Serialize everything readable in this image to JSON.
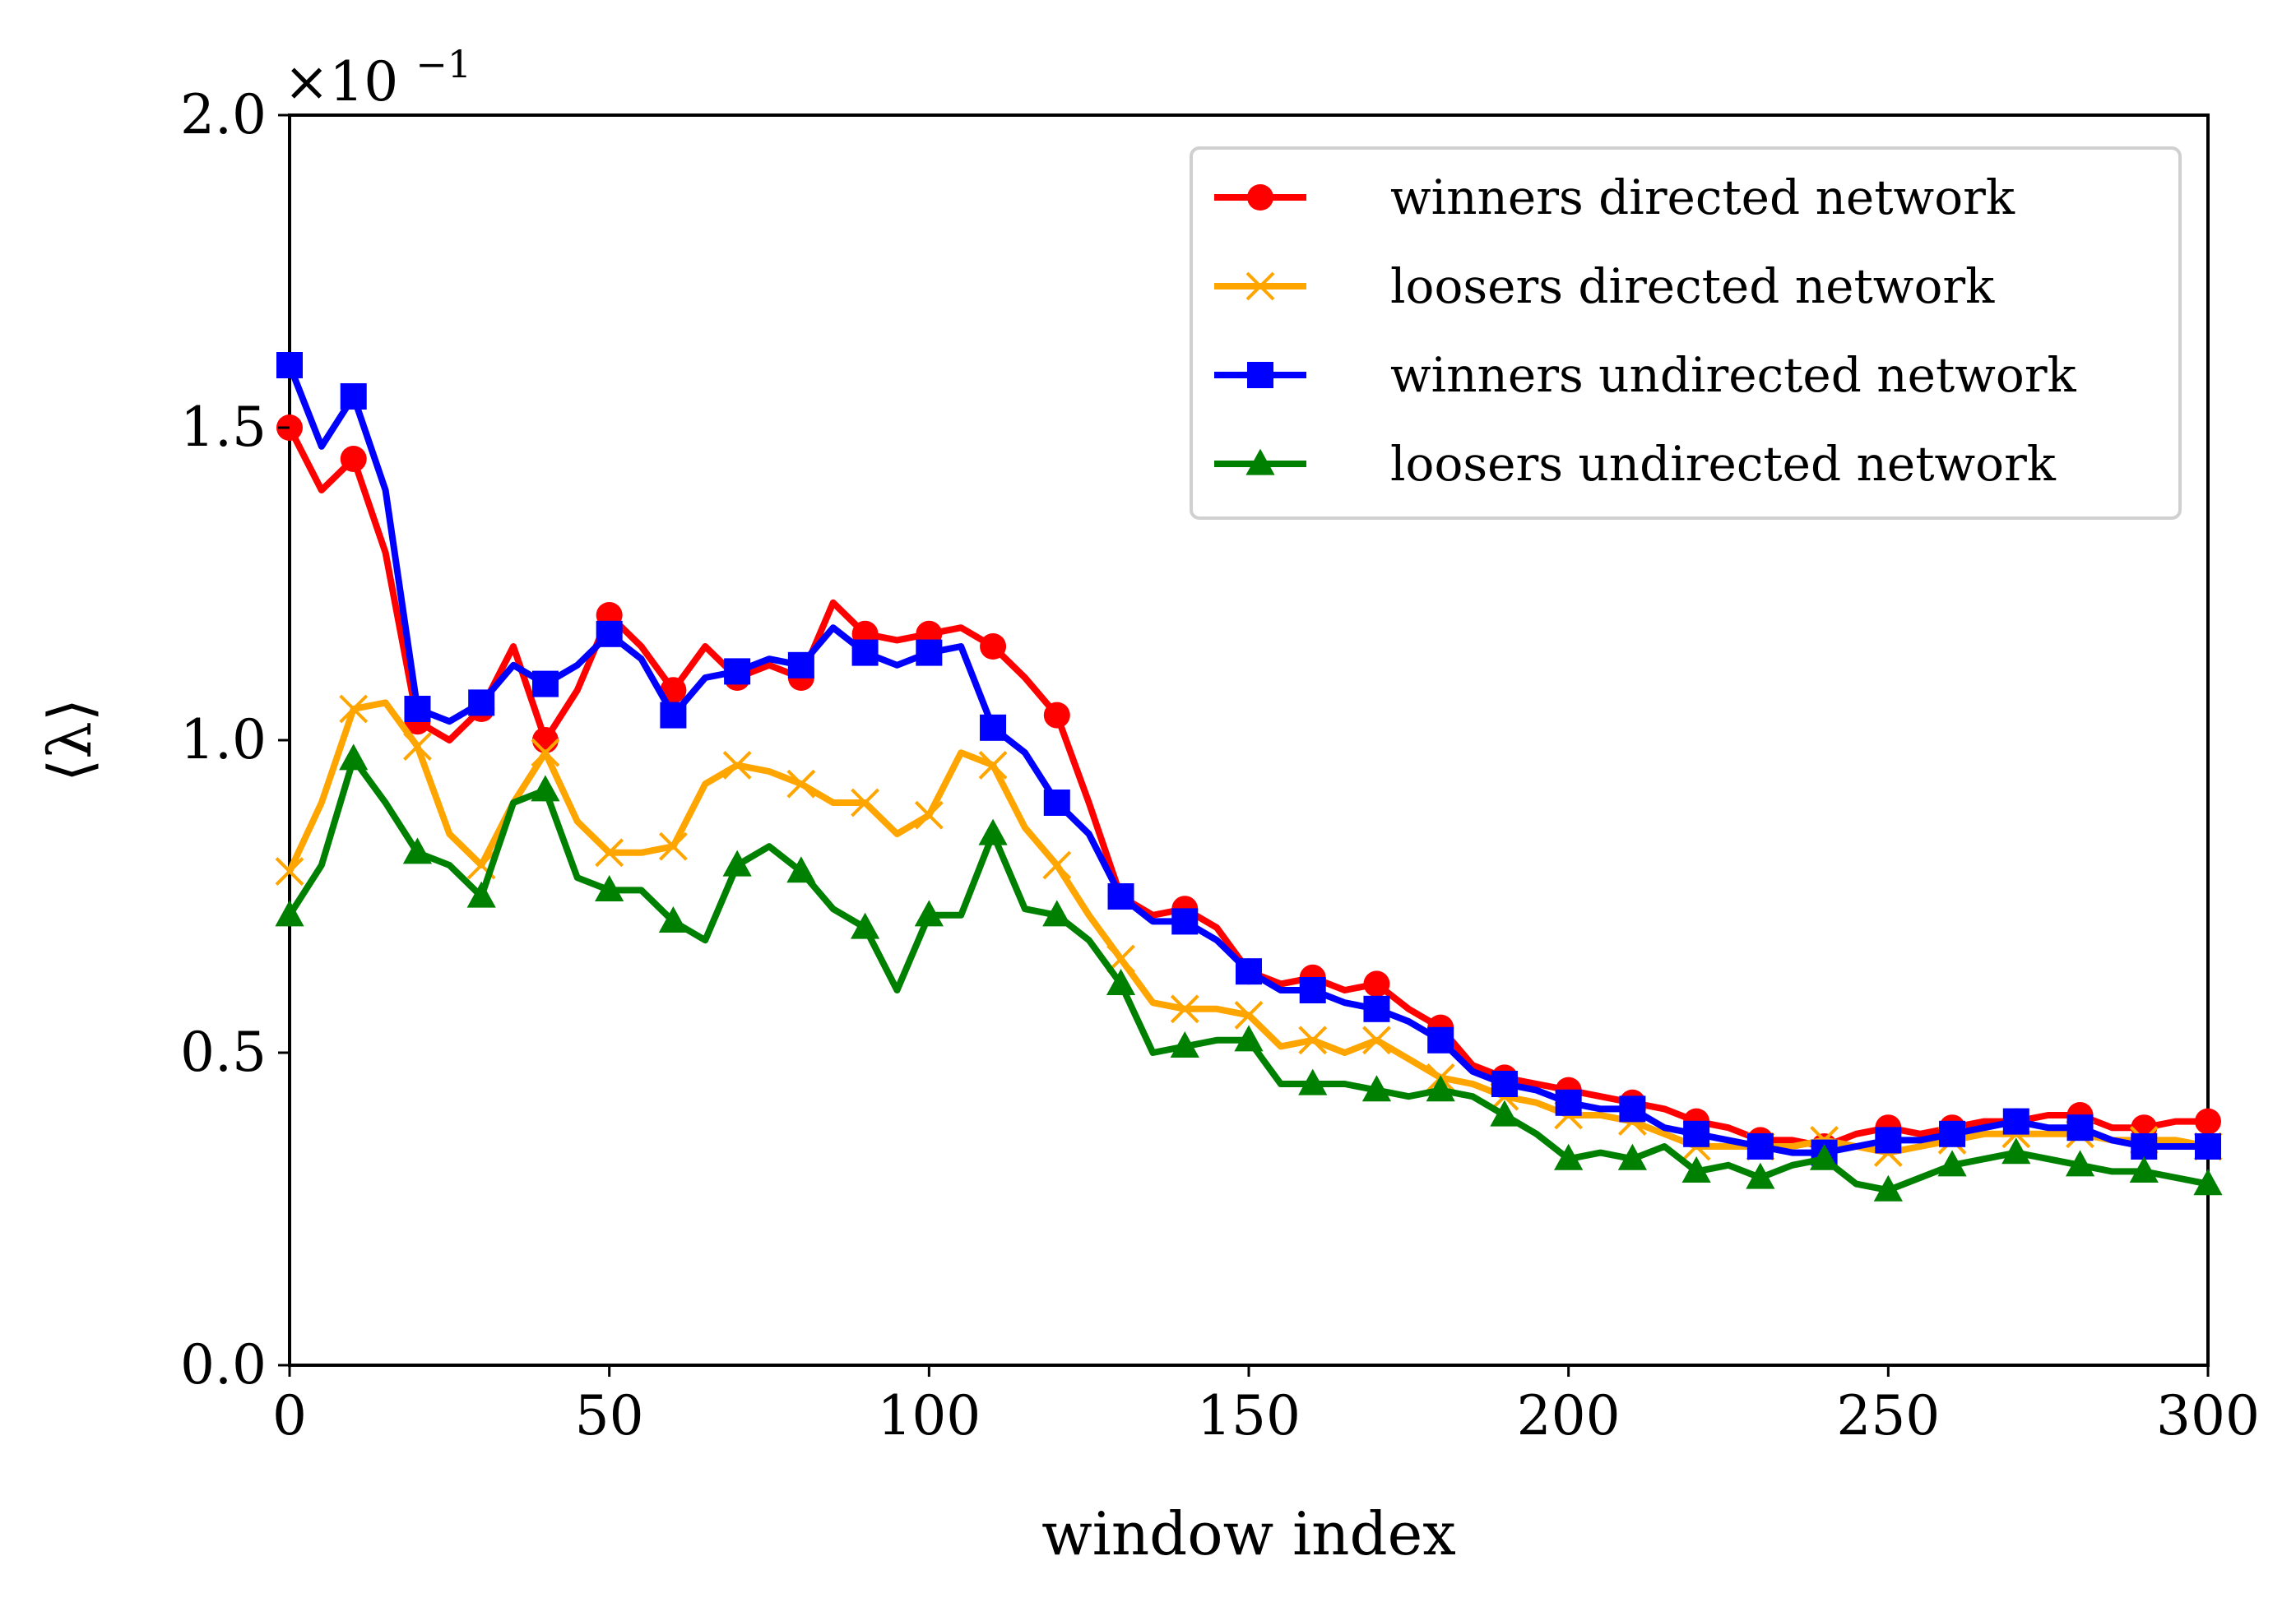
{
  "chart_data": {
    "type": "line",
    "xlabel": "window index",
    "ylabel": "⟨λ⟩",
    "y_multiplier_label": "×10",
    "y_multiplier_exponent": "−1",
    "xlim": [
      0,
      300
    ],
    "ylim": [
      0.0,
      2.0
    ],
    "x_ticks": [
      0,
      50,
      100,
      150,
      200,
      250,
      300
    ],
    "x_tick_labels": [
      "0",
      "50",
      "100",
      "150",
      "200",
      "250",
      "300"
    ],
    "y_ticks": [
      0.0,
      0.5,
      1.0,
      1.5,
      2.0
    ],
    "y_tick_labels": [
      "0.0",
      "0.5",
      "1.0",
      "1.5",
      "2.0"
    ],
    "grid": false,
    "legend_position": "top-right",
    "x": [
      0,
      5,
      10,
      15,
      20,
      25,
      30,
      35,
      40,
      45,
      50,
      55,
      60,
      65,
      70,
      75,
      80,
      85,
      90,
      95,
      100,
      105,
      110,
      115,
      120,
      125,
      130,
      135,
      140,
      145,
      150,
      155,
      160,
      165,
      170,
      175,
      180,
      185,
      190,
      195,
      200,
      205,
      210,
      215,
      220,
      225,
      230,
      235,
      240,
      245,
      250,
      255,
      260,
      265,
      270,
      275,
      280,
      285,
      290,
      295,
      300
    ],
    "series": [
      {
        "name": "winners directed network",
        "color": "#ff0000",
        "marker": "circle",
        "values": [
          1.5,
          1.4,
          1.45,
          1.3,
          1.03,
          1.0,
          1.05,
          1.15,
          1.0,
          1.08,
          1.2,
          1.15,
          1.08,
          1.15,
          1.1,
          1.12,
          1.1,
          1.22,
          1.17,
          1.16,
          1.17,
          1.18,
          1.15,
          1.1,
          1.04,
          0.9,
          0.75,
          0.72,
          0.73,
          0.7,
          0.63,
          0.61,
          0.62,
          0.6,
          0.61,
          0.57,
          0.54,
          0.48,
          0.46,
          0.45,
          0.44,
          0.43,
          0.42,
          0.41,
          0.39,
          0.38,
          0.36,
          0.36,
          0.35,
          0.37,
          0.38,
          0.37,
          0.38,
          0.39,
          0.39,
          0.4,
          0.4,
          0.38,
          0.38,
          0.39,
          0.39
        ]
      },
      {
        "name": "loosers directed network",
        "color": "#ffa500",
        "marker": "x",
        "values": [
          0.79,
          0.9,
          1.05,
          1.06,
          0.99,
          0.85,
          0.8,
          0.9,
          0.98,
          0.87,
          0.82,
          0.82,
          0.83,
          0.93,
          0.96,
          0.95,
          0.93,
          0.9,
          0.9,
          0.85,
          0.88,
          0.98,
          0.96,
          0.86,
          0.8,
          0.72,
          0.65,
          0.58,
          0.57,
          0.57,
          0.56,
          0.51,
          0.52,
          0.5,
          0.52,
          0.49,
          0.46,
          0.45,
          0.43,
          0.42,
          0.4,
          0.4,
          0.39,
          0.37,
          0.35,
          0.35,
          0.35,
          0.35,
          0.36,
          0.35,
          0.34,
          0.35,
          0.36,
          0.37,
          0.37,
          0.37,
          0.37,
          0.36,
          0.36,
          0.36,
          0.35
        ]
      },
      {
        "name": "winners undirected network",
        "color": "#0000ff",
        "marker": "square",
        "values": [
          1.6,
          1.47,
          1.55,
          1.4,
          1.05,
          1.03,
          1.06,
          1.12,
          1.09,
          1.12,
          1.17,
          1.13,
          1.04,
          1.1,
          1.11,
          1.13,
          1.12,
          1.18,
          1.14,
          1.12,
          1.14,
          1.15,
          1.02,
          0.98,
          0.9,
          0.85,
          0.75,
          0.71,
          0.71,
          0.68,
          0.63,
          0.6,
          0.6,
          0.58,
          0.57,
          0.55,
          0.52,
          0.47,
          0.45,
          0.44,
          0.42,
          0.41,
          0.41,
          0.38,
          0.37,
          0.36,
          0.35,
          0.34,
          0.34,
          0.35,
          0.36,
          0.36,
          0.37,
          0.38,
          0.39,
          0.38,
          0.38,
          0.36,
          0.35,
          0.35,
          0.35
        ]
      },
      {
        "name": "loosers undirected network",
        "color": "#008000",
        "marker": "triangle",
        "values": [
          0.72,
          0.8,
          0.97,
          0.9,
          0.82,
          0.8,
          0.75,
          0.9,
          0.92,
          0.78,
          0.76,
          0.76,
          0.71,
          0.68,
          0.8,
          0.83,
          0.79,
          0.73,
          0.7,
          0.6,
          0.72,
          0.72,
          0.85,
          0.73,
          0.72,
          0.68,
          0.61,
          0.5,
          0.51,
          0.52,
          0.52,
          0.45,
          0.45,
          0.45,
          0.44,
          0.43,
          0.44,
          0.43,
          0.4,
          0.37,
          0.33,
          0.34,
          0.33,
          0.35,
          0.31,
          0.32,
          0.3,
          0.32,
          0.33,
          0.29,
          0.28,
          0.3,
          0.32,
          0.33,
          0.34,
          0.33,
          0.32,
          0.31,
          0.31,
          0.3,
          0.29
        ]
      }
    ]
  }
}
